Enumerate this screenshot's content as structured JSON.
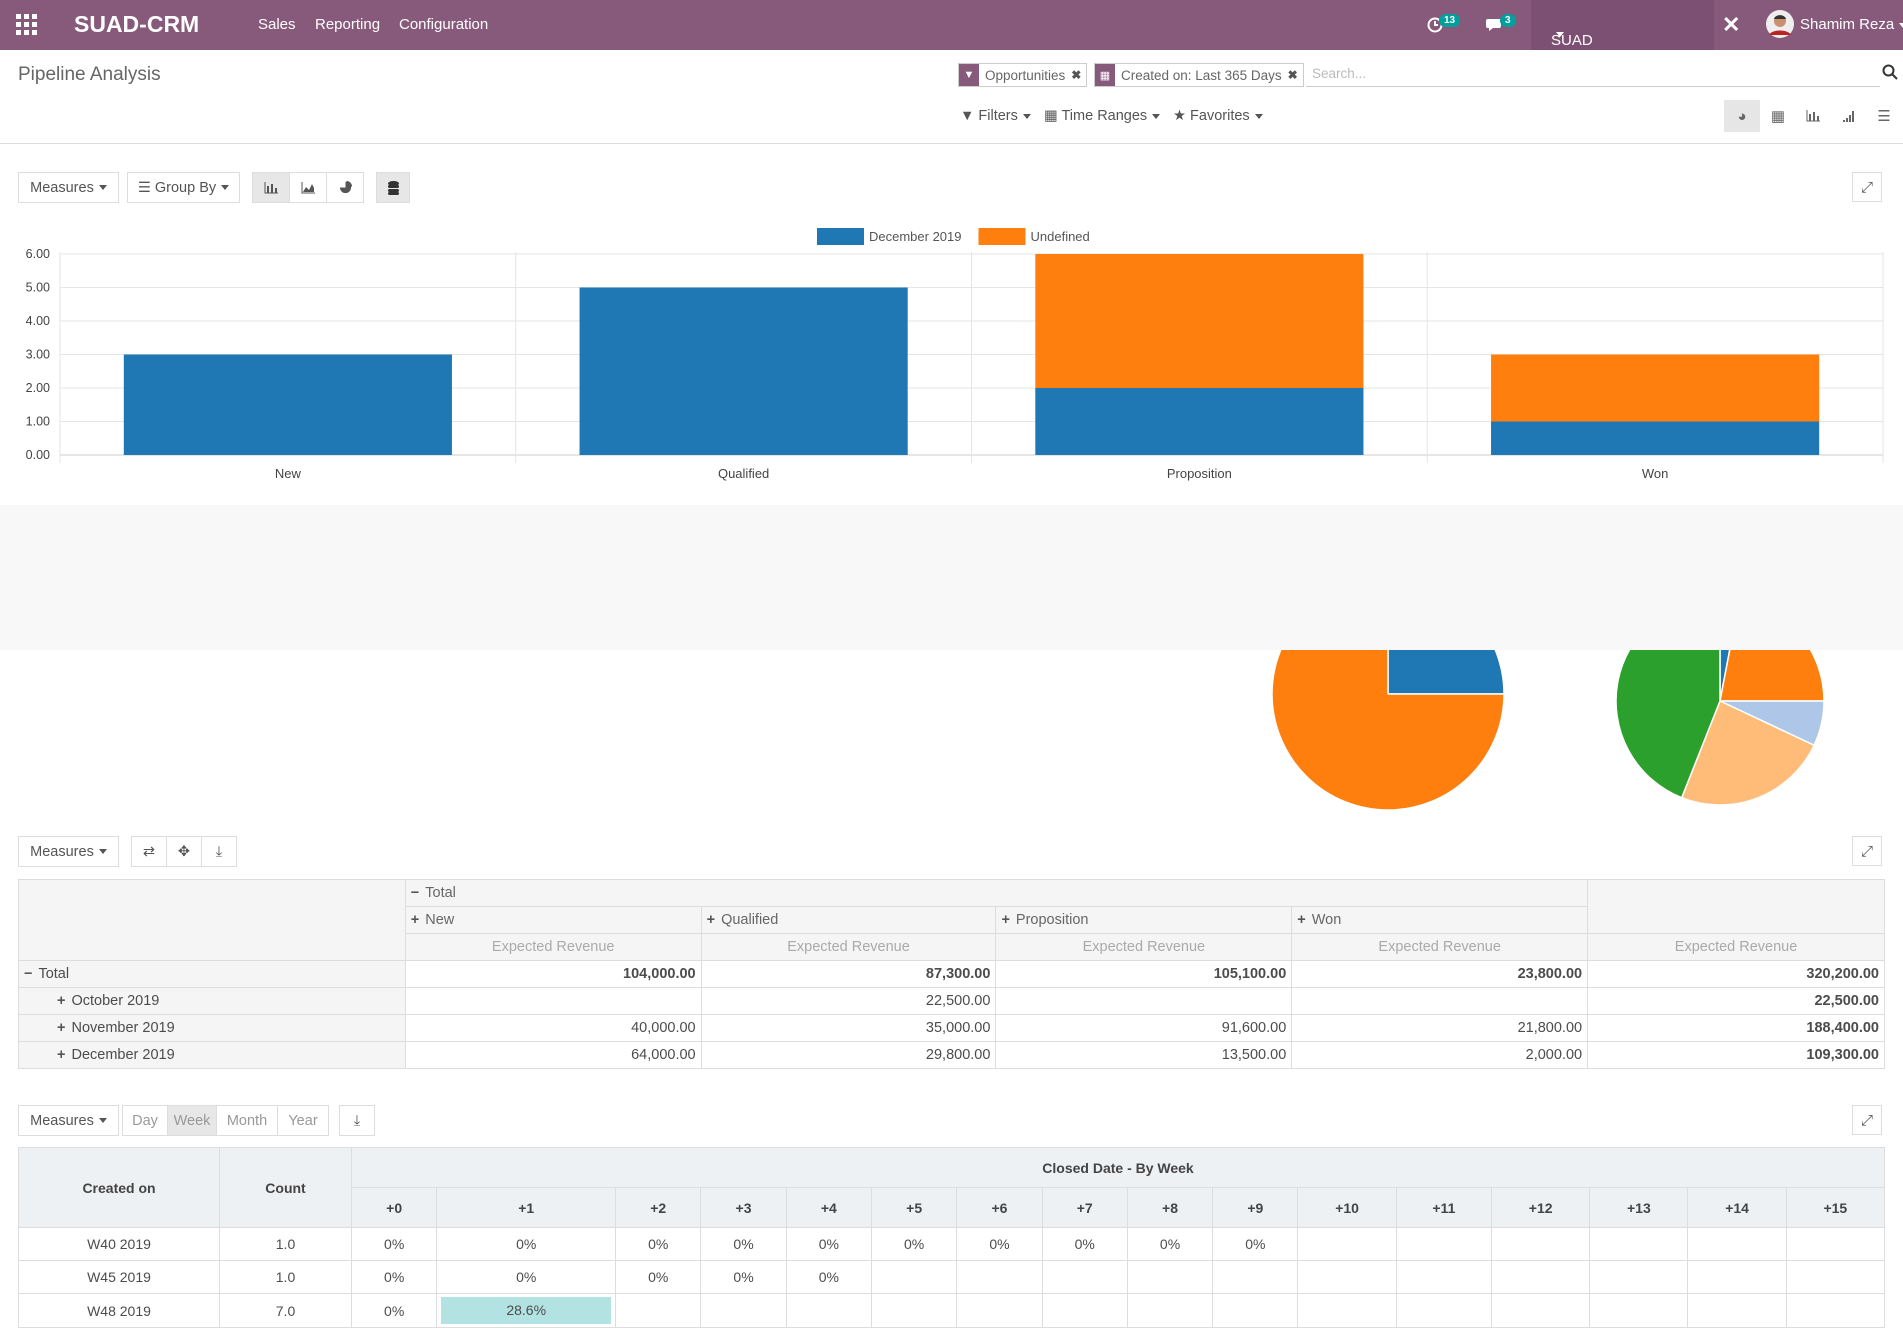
{
  "nav": {
    "brand": "SUAD-CRM",
    "menu": [
      "Sales",
      "Reporting",
      "Configuration"
    ],
    "activity_count": "13",
    "message_count": "3",
    "company": "SUAD GARMENTS LTD.",
    "user": "Shamim Reza"
  },
  "page": {
    "title": "Pipeline Analysis",
    "facets": [
      "Opportunities",
      "Created on: Last 365 Days"
    ],
    "search_placeholder": "Search...",
    "filters_label": "Filters",
    "time_ranges_label": "Time Ranges",
    "favorites_label": "Favorites"
  },
  "graph_toolbar": {
    "measures": "Measures",
    "group_by": "Group By"
  },
  "chart_data": {
    "type": "bar",
    "stacked": true,
    "categories": [
      "New",
      "Qualified",
      "Proposition",
      "Won"
    ],
    "series": [
      {
        "name": "December 2019",
        "color": "#1f77b4",
        "values": [
          3,
          5,
          2,
          1
        ]
      },
      {
        "name": "Undefined",
        "color": "#ff7f0e",
        "values": [
          0,
          0,
          4,
          2
        ]
      }
    ],
    "ylim": [
      0,
      6
    ],
    "yticks": [
      "0.00",
      "1.00",
      "2.00",
      "3.00",
      "4.00",
      "5.00",
      "6.00"
    ],
    "legend": "top-center",
    "grid": true
  },
  "pie_charts": [
    {
      "slices": [
        {
          "value": 25,
          "color": "#1f77b4"
        },
        {
          "value": 75,
          "color": "#ff7f0e"
        }
      ]
    },
    {
      "slices": [
        {
          "value": 3,
          "color": "#1f77b4"
        },
        {
          "value": 22,
          "color": "#ff7f0e"
        },
        {
          "value": 7,
          "color": "#aec7e8"
        },
        {
          "value": 24,
          "color": "#ffbb78"
        },
        {
          "value": 44,
          "color": "#2ca02c"
        }
      ]
    }
  ],
  "pivot": {
    "measures": "Measures",
    "col_total": "Total",
    "columns": [
      "New",
      "Qualified",
      "Proposition",
      "Won"
    ],
    "measure_label": "Expected Revenue",
    "rows": [
      {
        "label": "Total",
        "values": [
          "104,000.00",
          "87,300.00",
          "105,100.00",
          "23,800.00",
          "320,200.00"
        ]
      },
      {
        "label": "October 2019",
        "values": [
          "",
          "22,500.00",
          "",
          "",
          "22,500.00"
        ]
      },
      {
        "label": "November 2019",
        "values": [
          "40,000.00",
          "35,000.00",
          "91,600.00",
          "21,800.00",
          "188,400.00"
        ]
      },
      {
        "label": "December 2019",
        "values": [
          "64,000.00",
          "29,800.00",
          "13,500.00",
          "2,000.00",
          "109,300.00"
        ]
      }
    ]
  },
  "cohort": {
    "measures": "Measures",
    "intervals": [
      "Day",
      "Week",
      "Month",
      "Year"
    ],
    "active_interval": "Week",
    "created_on_label": "Created on",
    "count_label": "Count",
    "group_title": "Closed Date - By Week",
    "columns": [
      "+0",
      "+1",
      "+2",
      "+3",
      "+4",
      "+5",
      "+6",
      "+7",
      "+8",
      "+9",
      "+10",
      "+11",
      "+12",
      "+13",
      "+14",
      "+15"
    ],
    "rows": [
      {
        "label": "W40 2019",
        "count": "1.0",
        "cells": [
          "0%",
          "0%",
          "0%",
          "0%",
          "0%",
          "0%",
          "0%",
          "0%",
          "0%",
          "0%",
          "",
          "",
          "",
          "",
          "",
          ""
        ]
      },
      {
        "label": "W45 2019",
        "count": "1.0",
        "cells": [
          "0%",
          "0%",
          "0%",
          "0%",
          "0%",
          "",
          "",
          "",
          "",
          "",
          "",
          "",
          "",
          "",
          "",
          ""
        ]
      },
      {
        "label": "W48 2019",
        "count": "7.0",
        "cells": [
          "0%",
          "28.6%",
          "",
          "",
          "",
          "",
          "",
          "",
          "",
          "",
          "",
          "",
          "",
          "",
          "",
          ""
        ]
      }
    ]
  }
}
